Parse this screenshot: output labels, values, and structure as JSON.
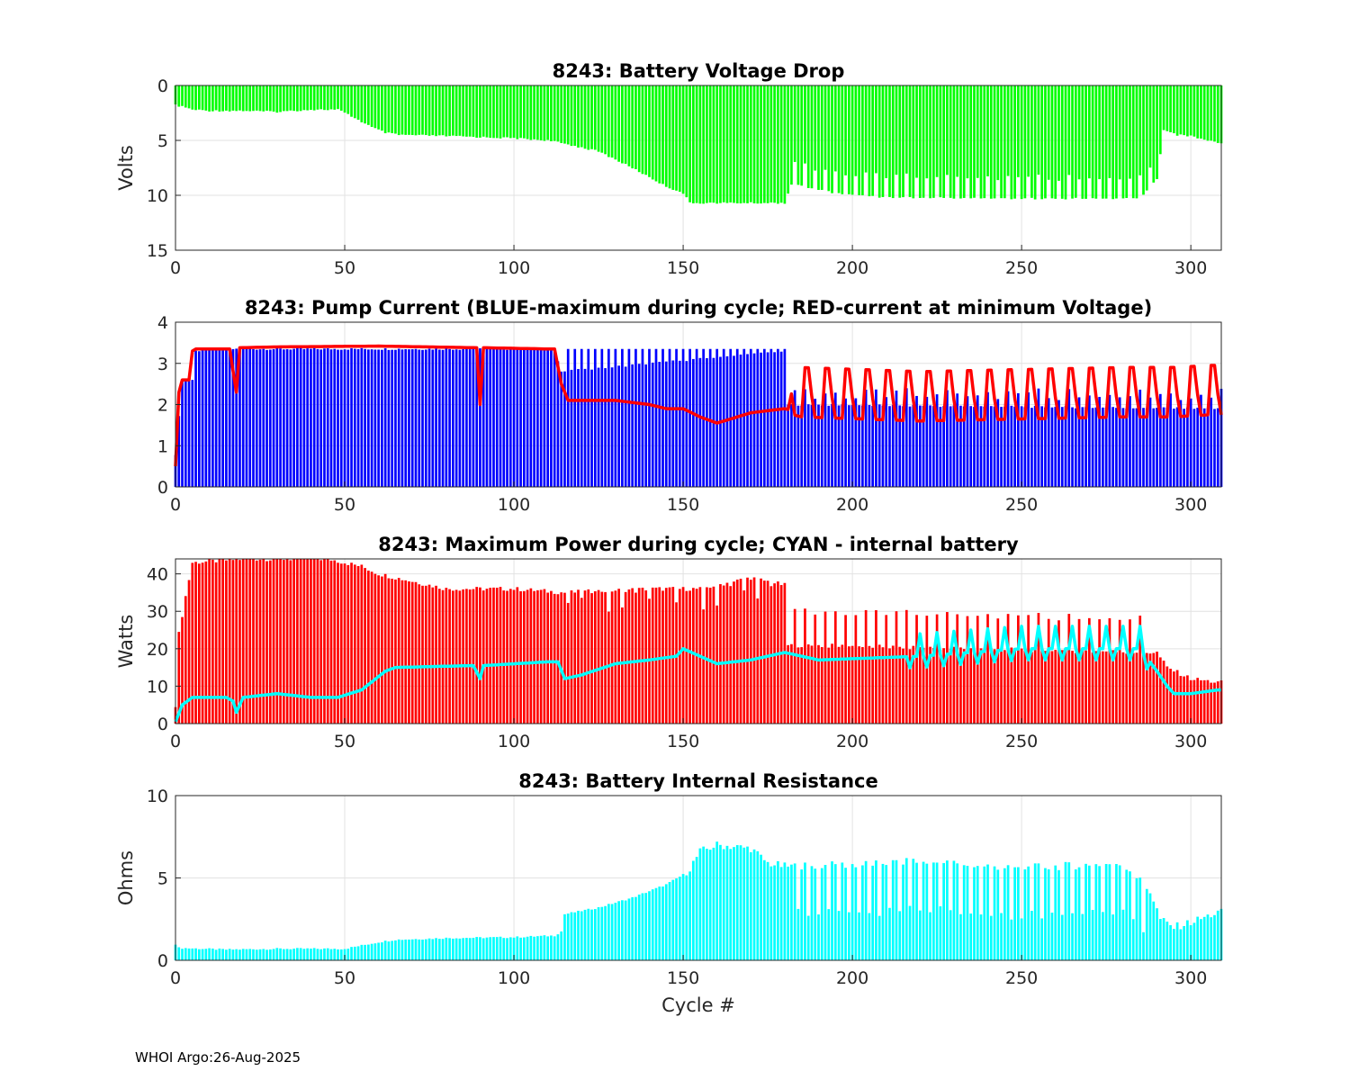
{
  "figure": {
    "xlabel": "Cycle #",
    "footer": "WHOI Argo:26-Aug-2025",
    "x_range": [
      0,
      309
    ],
    "x_ticks": [
      0,
      50,
      100,
      150,
      200,
      250,
      300
    ]
  },
  "chart_data": [
    {
      "id": "voltage",
      "type": "bar",
      "title": "8243: Battery Voltage Drop",
      "ylabel": "Volts",
      "ylim": [
        0,
        15
      ],
      "y_reversed": true,
      "y_ticks": [
        0,
        5,
        10,
        15
      ],
      "bar_color": "#00ff00",
      "knots_x": [
        0,
        3,
        5,
        10,
        20,
        30,
        40,
        48,
        52,
        58,
        62,
        66,
        80,
        100,
        110,
        115,
        125,
        135,
        145,
        150,
        152,
        180,
        182,
        195,
        210,
        250,
        285,
        290,
        292,
        296,
        300,
        305,
        308
      ],
      "knots_y": [
        1.8,
        2.0,
        2.2,
        2.3,
        2.3,
        2.4,
        2.2,
        2.2,
        2.8,
        3.8,
        4.3,
        4.5,
        4.6,
        4.8,
        5.0,
        5.3,
        6.0,
        7.5,
        9.2,
        9.8,
        10.7,
        10.7,
        9.0,
        9.8,
        10.2,
        10.3,
        10.3,
        8.5,
        4.0,
        4.5,
        4.6,
        5.0,
        5.2
      ],
      "notes": "Green bars hang from 0 downward; y axis reversed (0 at top, 15 at bottom)."
    },
    {
      "id": "current",
      "type": "bar+line",
      "title": "8243: Pump Current (BLUE-maximum during cycle; RED-current at minimum Voltage)",
      "ylabel": "",
      "ylim": [
        0,
        4
      ],
      "y_ticks": [
        0,
        1,
        2,
        3,
        4
      ],
      "series": [
        {
          "name": "maximum during cycle",
          "type": "bar",
          "color": "#0000ff",
          "knots_x": [
            0,
            2,
            5,
            6,
            10,
            112,
            114,
            180,
            181,
            308
          ],
          "knots_y": [
            0.8,
            2.6,
            2.6,
            3.3,
            3.35,
            3.35,
            2.8,
            3.3,
            2.0,
            1.9
          ]
        },
        {
          "name": "current at minimum Voltage",
          "type": "line",
          "color": "#ff0000",
          "knots_x": [
            0,
            1,
            2,
            4,
            5,
            6,
            16,
            18,
            19,
            30,
            60,
            89,
            90,
            91,
            110,
            112,
            114,
            116,
            130,
            140,
            145,
            150,
            155,
            160,
            170,
            180,
            185,
            220,
            280,
            295,
            305,
            308
          ],
          "knots_y": [
            0.5,
            2.3,
            2.6,
            2.6,
            3.3,
            3.35,
            3.35,
            2.3,
            3.38,
            3.4,
            3.42,
            3.38,
            2.0,
            3.38,
            3.35,
            3.35,
            2.5,
            2.1,
            2.1,
            2.0,
            1.9,
            1.9,
            1.7,
            1.55,
            1.8,
            1.9,
            1.8,
            1.7,
            1.8,
            1.8,
            1.85,
            1.85
          ]
        }
      ]
    },
    {
      "id": "power",
      "type": "bar+line",
      "title": "8243: Maximum Power during cycle; CYAN - internal battery",
      "ylabel": "Watts",
      "ylim": [
        0,
        44
      ],
      "y_ticks": [
        0,
        10,
        20,
        30,
        40
      ],
      "series": [
        {
          "name": "maximum power",
          "type": "bar",
          "color": "#ff0000",
          "knots_x": [
            0,
            1,
            3,
            5,
            20,
            45,
            55,
            60,
            70,
            80,
            100,
            115,
            140,
            155,
            170,
            175,
            180,
            181,
            290,
            293,
            300,
            308
          ],
          "knots_y": [
            5,
            24,
            34,
            43,
            44,
            44,
            42,
            40,
            38,
            36,
            36,
            35,
            36,
            36,
            39,
            38,
            37,
            21,
            19,
            15,
            12,
            11
          ]
        },
        {
          "name": "internal battery",
          "type": "line",
          "color": "#00ffff",
          "knots_x": [
            0,
            2,
            5,
            15,
            17,
            18,
            20,
            30,
            40,
            48,
            55,
            62,
            65,
            88,
            90,
            91,
            110,
            113,
            115,
            120,
            130,
            140,
            148,
            150,
            155,
            160,
            170,
            180,
            190,
            220,
            250,
            270,
            285,
            290,
            293,
            295,
            300,
            308
          ],
          "knots_y": [
            0.5,
            5,
            7,
            7,
            6,
            3,
            7,
            8,
            7,
            7,
            9,
            14,
            15,
            15.5,
            12,
            15.5,
            16.5,
            16.5,
            12,
            13,
            16,
            17,
            18,
            20,
            18,
            16,
            17,
            19,
            17,
            18,
            20,
            20,
            20,
            14,
            10,
            8,
            8,
            9
          ]
        }
      ]
    },
    {
      "id": "resistance",
      "type": "bar",
      "title": "8243: Battery Internal Resistance",
      "ylabel": "Ohms",
      "ylim": [
        0,
        10
      ],
      "y_ticks": [
        0,
        5,
        10
      ],
      "bar_color": "#00ffff",
      "knots_x": [
        0,
        1,
        15,
        30,
        50,
        55,
        60,
        65,
        80,
        100,
        112,
        114,
        115,
        125,
        135,
        145,
        150,
        152,
        155,
        160,
        170,
        175,
        180,
        200,
        220,
        250,
        280,
        288,
        291,
        294,
        295,
        300,
        308
      ],
      "knots_y": [
        1.0,
        0.75,
        0.65,
        0.7,
        0.7,
        0.9,
        1.1,
        1.25,
        1.35,
        1.4,
        1.5,
        1.75,
        2.8,
        3.2,
        3.8,
        4.6,
        5.2,
        5.6,
        6.6,
        7.0,
        6.8,
        5.9,
        5.7,
        5.8,
        6.0,
        5.6,
        5.9,
        4.2,
        2.5,
        2.1,
        2.0,
        2.3,
        2.9
      ]
    }
  ]
}
